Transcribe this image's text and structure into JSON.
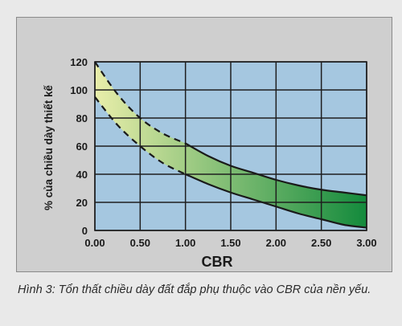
{
  "chart_data": {
    "type": "area",
    "title": "",
    "xlabel": "CBR",
    "ylabel": "% của chiều dày thiết kế",
    "xlim": [
      0,
      3
    ],
    "ylim": [
      0,
      120
    ],
    "x_ticks": [
      0,
      0.5,
      1,
      1.5,
      2,
      2.5,
      3
    ],
    "x_tick_labels": [
      "0.00",
      "0.50",
      "1.00",
      "1.50",
      "2.00",
      "2.50",
      "3.00"
    ],
    "y_ticks": [
      0,
      20,
      40,
      60,
      80,
      100,
      120
    ],
    "y_tick_labels": [
      "0",
      "20",
      "40",
      "60",
      "80",
      "100",
      "120"
    ],
    "grid": true,
    "series": [
      {
        "style": "upper-boundary",
        "x": [
          0,
          0.25,
          0.5,
          0.75,
          1,
          1.25,
          1.5,
          1.75,
          2,
          2.25,
          2.5,
          2.75,
          3
        ],
        "y": [
          120,
          97,
          80,
          69,
          62,
          53,
          46,
          41,
          36,
          32,
          29,
          27,
          25
        ]
      },
      {
        "style": "lower-boundary",
        "x": [
          0,
          0.25,
          0.5,
          0.75,
          1,
          1.25,
          1.5,
          1.75,
          2,
          2.25,
          2.5,
          2.75,
          3
        ],
        "y": [
          95,
          75,
          60,
          48,
          40,
          33,
          27,
          22,
          17,
          12,
          8,
          4,
          2
        ]
      }
    ],
    "dashed_until_x": 1.0,
    "colors": {
      "plot_background": "#a5c7e0",
      "grid": "#1f1f1f",
      "band_light": "#e9eeaa",
      "band_dark": "#138a3c",
      "frame_background": "#cfcfcf"
    }
  },
  "caption": "Hình 3: Tổn thất chiều dày đất đắp phụ thuộc vào CBR của nền yếu."
}
